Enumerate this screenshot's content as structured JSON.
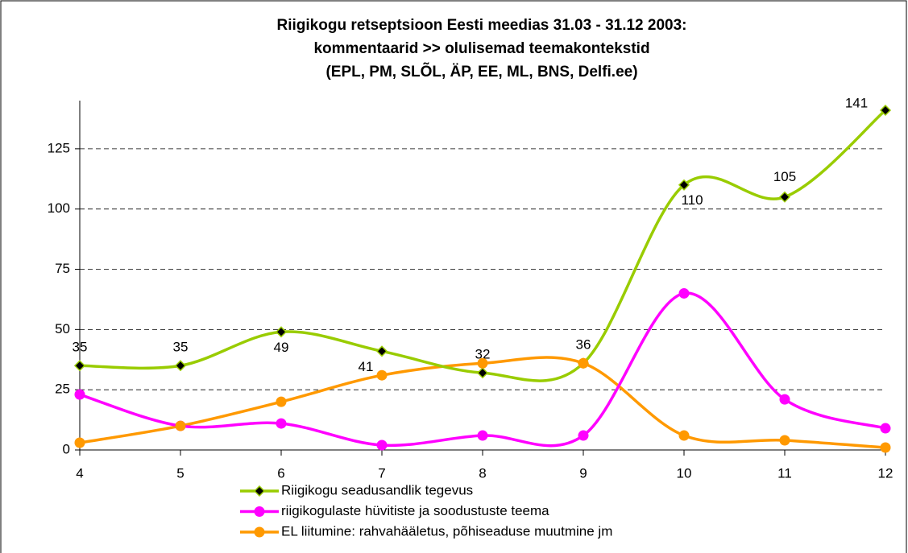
{
  "chart_data": {
    "type": "line",
    "title": [
      "Riigikogu retseptsioon Eesti meedias 31.03 - 31.12 2003:",
      "kommentaarid >> olulisemad teemakontekstid",
      "(EPL, PM, SLÕL, ÄP, EE, ML, BNS, Delfi.ee)"
    ],
    "x": [
      4,
      5,
      6,
      7,
      8,
      9,
      10,
      11,
      12
    ],
    "xlim": [
      4,
      12
    ],
    "xticks": [
      4,
      5,
      6,
      7,
      8,
      9,
      10,
      11,
      12
    ],
    "ylim": [
      0,
      145
    ],
    "yticks": [
      0,
      25,
      50,
      75,
      100,
      125
    ],
    "grid": true,
    "smooth": true,
    "legend": "bottom",
    "series": [
      {
        "name": "Riigikogu seadusandlik tegevus",
        "color": "#99cc00",
        "marker": "diamond",
        "marker_color": "#000000",
        "data_labels": true,
        "values": [
          35,
          35,
          49,
          41,
          32,
          36,
          110,
          105,
          141
        ]
      },
      {
        "name": "riigikogulaste hüvitiste ja soodustuste teema",
        "color": "#ff00ff",
        "marker": "circle",
        "values": [
          23,
          10,
          11,
          2,
          6,
          6,
          65,
          21,
          9
        ]
      },
      {
        "name": "EL liitumine: rahvahääletus, põhiseaduse muutmine jm",
        "color": "#ff9900",
        "marker": "circle",
        "values": [
          3,
          10,
          20,
          31,
          36,
          36,
          6,
          4,
          1
        ]
      }
    ]
  }
}
